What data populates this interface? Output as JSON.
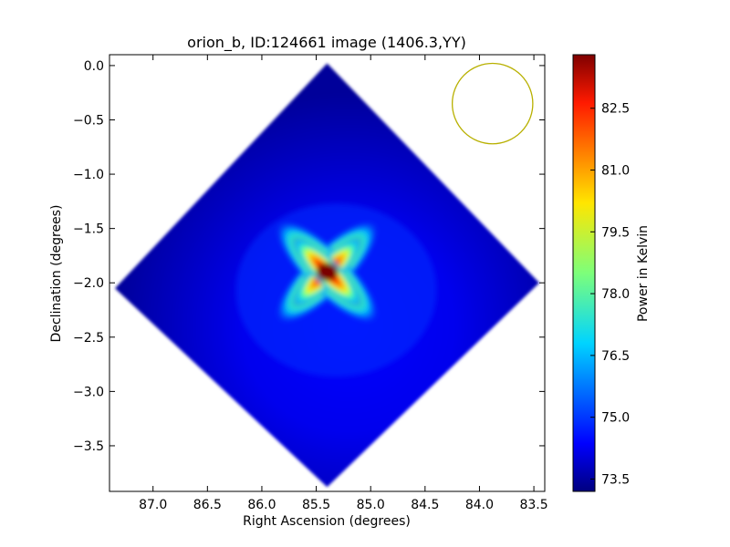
{
  "chart_data": {
    "type": "heatmap",
    "title": "orion_b, ID:124661 image (1406.3,YY)",
    "xlabel": "Right Ascension (degrees)",
    "ylabel": "Declination (degrees)",
    "xlim": [
      87.4,
      83.4
    ],
    "ylim": [
      -3.92,
      0.1
    ],
    "x_ticks": [
      "87.0",
      "86.5",
      "86.0",
      "85.5",
      "85.0",
      "84.5",
      "84.0",
      "83.5"
    ],
    "x_tick_values": [
      87.0,
      86.5,
      86.0,
      85.5,
      85.0,
      84.5,
      84.0,
      83.5
    ],
    "y_ticks": [
      "0.0",
      "−0.5",
      "−1.0",
      "−1.5",
      "−2.0",
      "−2.5",
      "−3.0",
      "−3.5"
    ],
    "y_tick_values": [
      0.0,
      -0.5,
      -1.0,
      -1.5,
      -2.0,
      -2.5,
      -3.0,
      -3.5
    ],
    "grid": false,
    "colormap": "jet",
    "colorbar": {
      "label": "Power in Kelvin",
      "range": [
        73.2,
        83.8
      ],
      "ticks": [
        "73.5",
        "75.0",
        "76.5",
        "78.0",
        "79.5",
        "81.0",
        "82.5"
      ],
      "tick_values": [
        73.5,
        75.0,
        76.5,
        78.0,
        79.5,
        81.0,
        82.5
      ]
    },
    "map": {
      "center_ra": 85.4,
      "center_dec": -1.9,
      "footprint_corners": [
        {
          "ra": 85.4,
          "dec": 0.02
        },
        {
          "ra": 83.45,
          "dec": -2.0
        },
        {
          "ra": 85.4,
          "dec": -3.88
        },
        {
          "ra": 87.35,
          "dec": -2.05
        }
      ],
      "background_level": 73.4,
      "peak_level": 83.5
    },
    "beam": {
      "ra": 83.88,
      "dec": -0.35,
      "radius_deg": 0.37,
      "color": "#b8b000"
    }
  }
}
